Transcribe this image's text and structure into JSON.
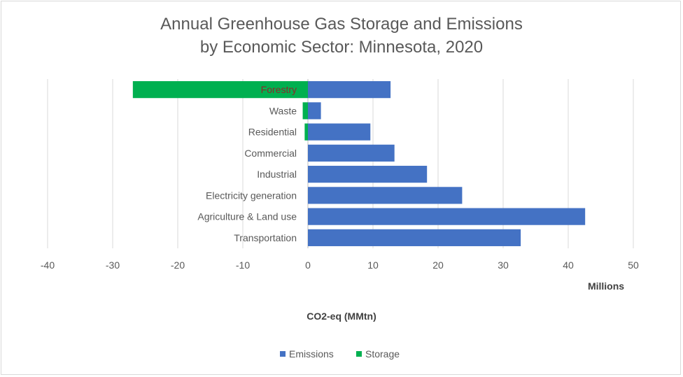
{
  "chart_data": {
    "type": "bar",
    "orientation": "horizontal",
    "stacked": true,
    "title_line1": "Annual Greenhouse Gas Storage and Emissions",
    "title_line2": "by Economic Sector: Minnesota, 2020",
    "xlabel": "CO2-eq (MMtn)",
    "display_units": "Millions",
    "xlim": [
      -40,
      50
    ],
    "xticks": [
      -40,
      -30,
      -20,
      -10,
      0,
      10,
      20,
      30,
      40,
      50
    ],
    "grid": true,
    "legend_position": "bottom",
    "categories": [
      "Forestry",
      "Waste",
      "Residential",
      "Commercial",
      "Industrial",
      "Electricity generation",
      "Agriculture & Land use",
      "Transportation"
    ],
    "series": [
      {
        "name": "Emissions",
        "color": "#4472c4",
        "values": [
          12.7,
          2.0,
          9.6,
          13.3,
          18.3,
          23.7,
          42.6,
          32.7
        ]
      },
      {
        "name": "Storage",
        "color": "#00b050",
        "values": [
          -26.9,
          -0.8,
          -0.5,
          0,
          0,
          0,
          0,
          0
        ]
      }
    ]
  }
}
